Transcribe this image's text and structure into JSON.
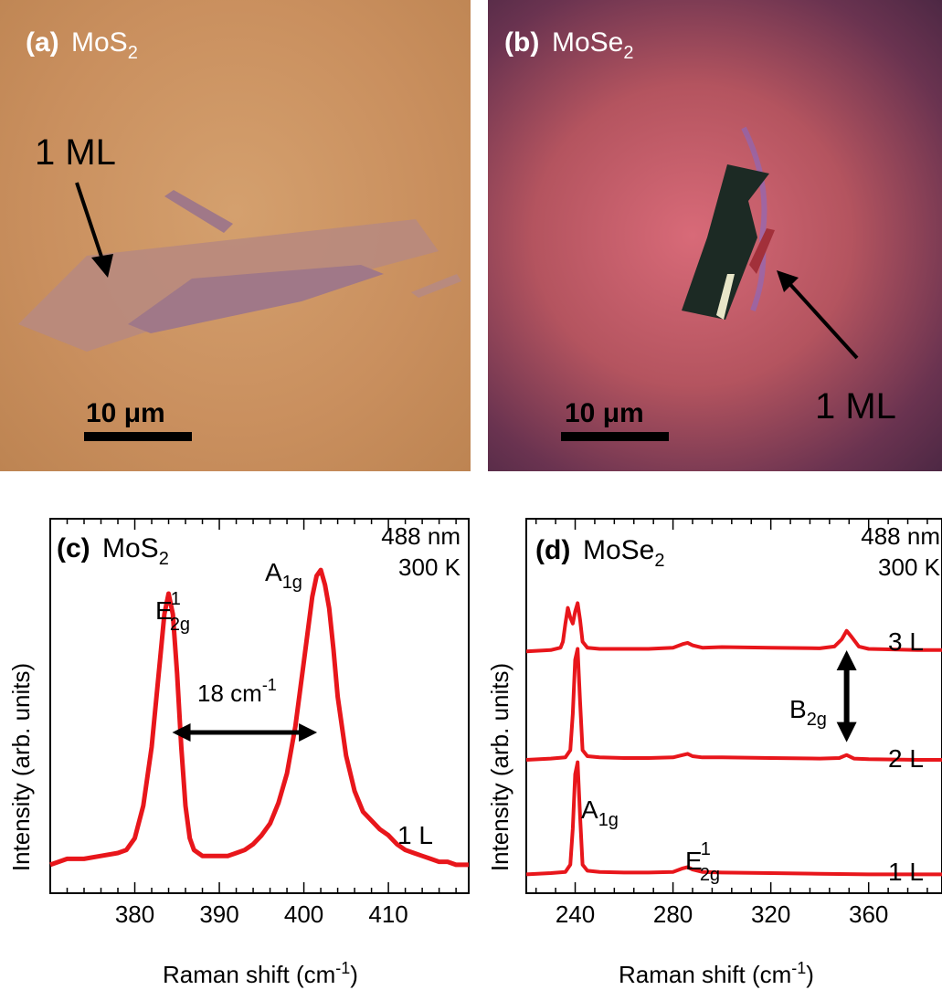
{
  "panel_a": {
    "tag": "(a)",
    "material": "MoS",
    "material_sub": "2",
    "flake_label": "1 ML",
    "scale_bar": "10 μm"
  },
  "panel_b": {
    "tag": "(b)",
    "material": "MoSe",
    "material_sub": "2",
    "flake_label": "1 ML",
    "scale_bar": "10 μm"
  },
  "colors": {
    "trace": "#e8161b",
    "arrow": "#000000"
  },
  "chart_data": [
    {
      "type": "line",
      "panel": "c",
      "tag": "(c)",
      "title": "MoS",
      "title_sub": "2",
      "laser": "488 nm",
      "temperature": "300 K",
      "xlabel": "Raman shift (cm",
      "xlabel_sup": "-1",
      "xlabel_end": ")",
      "ylabel": "Intensity (arb. units)",
      "xlim": [
        370,
        419.5
      ],
      "xticks": [
        380,
        390,
        400,
        410
      ],
      "series": [
        {
          "name": "1 L",
          "x": [
            370,
            372,
            374,
            376,
            378,
            379,
            380,
            381,
            382,
            383,
            383.5,
            384,
            384.5,
            385,
            385.5,
            386,
            386.5,
            387,
            388,
            389,
            390,
            391,
            392,
            393,
            394,
            395,
            396,
            397,
            398,
            399,
            400,
            401,
            401.5,
            402,
            402.5,
            403,
            403.5,
            404,
            405,
            406,
            407,
            408,
            409,
            410,
            411,
            412,
            413,
            414,
            415,
            416,
            417,
            418,
            419.5
          ],
          "y": [
            0.05,
            0.07,
            0.07,
            0.08,
            0.09,
            0.1,
            0.14,
            0.25,
            0.45,
            0.75,
            0.9,
            0.97,
            0.9,
            0.7,
            0.45,
            0.25,
            0.14,
            0.1,
            0.08,
            0.08,
            0.08,
            0.08,
            0.09,
            0.1,
            0.12,
            0.15,
            0.19,
            0.26,
            0.36,
            0.52,
            0.74,
            0.96,
            1.03,
            1.05,
            1.0,
            0.92,
            0.78,
            0.62,
            0.42,
            0.3,
            0.23,
            0.2,
            0.17,
            0.15,
            0.12,
            0.1,
            0.09,
            0.08,
            0.07,
            0.06,
            0.06,
            0.05,
            0.05
          ]
        }
      ],
      "annotations": {
        "peak1": {
          "label": "E",
          "sup": "1",
          "sub": "2g"
        },
        "peak2": {
          "label": "A",
          "sub": "1g"
        },
        "splitting": {
          "value": "18 cm",
          "sup": "-1",
          "from": 384,
          "to": 402
        }
      }
    },
    {
      "type": "line",
      "panel": "d",
      "tag": "(d)",
      "title": "MoSe",
      "title_sub": "2",
      "laser": "488 nm",
      "temperature": "300 K",
      "xlabel": "Raman shift (cm",
      "xlabel_sup": "-1",
      "xlabel_end": ")",
      "ylabel": "Intensity (arb. units)",
      "xlim": [
        220,
        390
      ],
      "xticks": [
        240,
        280,
        320,
        360
      ],
      "series": [
        {
          "name": "1 L",
          "offset": 0,
          "x": [
            220,
            230,
            236,
            238,
            239,
            240,
            241,
            242,
            243,
            245,
            250,
            260,
            270,
            280,
            284,
            286,
            288,
            292,
            300,
            320,
            340,
            360,
            380,
            390
          ],
          "y": [
            0.02,
            0.03,
            0.04,
            0.1,
            0.4,
            0.85,
            0.95,
            0.5,
            0.1,
            0.05,
            0.04,
            0.035,
            0.035,
            0.04,
            0.07,
            0.08,
            0.06,
            0.04,
            0.035,
            0.03,
            0.025,
            0.02,
            0.02,
            0.02
          ]
        },
        {
          "name": "2 L",
          "offset": 0.95,
          "x": [
            220,
            230,
            236,
            238,
            239,
            240,
            241,
            242,
            243,
            245,
            250,
            260,
            270,
            280,
            284,
            286,
            288,
            292,
            300,
            320,
            340,
            348,
            351,
            354,
            360,
            380,
            390
          ],
          "y": [
            0.02,
            0.03,
            0.04,
            0.1,
            0.4,
            0.85,
            0.94,
            0.5,
            0.1,
            0.05,
            0.04,
            0.035,
            0.035,
            0.04,
            0.06,
            0.07,
            0.05,
            0.04,
            0.04,
            0.035,
            0.03,
            0.035,
            0.06,
            0.03,
            0.025,
            0.02,
            0.02
          ]
        },
        {
          "name": "3 L",
          "offset": 1.85,
          "x": [
            220,
            230,
            234,
            235,
            236,
            237,
            238,
            239,
            240,
            241,
            242,
            243,
            245,
            250,
            260,
            270,
            280,
            284,
            286,
            288,
            292,
            300,
            320,
            340,
            346,
            349,
            351,
            353,
            356,
            360,
            380,
            390
          ],
          "y": [
            0.02,
            0.03,
            0.05,
            0.1,
            0.25,
            0.38,
            0.3,
            0.25,
            0.35,
            0.42,
            0.28,
            0.1,
            0.05,
            0.04,
            0.04,
            0.04,
            0.05,
            0.08,
            0.09,
            0.07,
            0.05,
            0.055,
            0.05,
            0.045,
            0.06,
            0.12,
            0.19,
            0.14,
            0.06,
            0.04,
            0.03,
            0.03
          ]
        }
      ],
      "annotations": {
        "peak1": {
          "label": "A",
          "sub": "1g"
        },
        "peak2": {
          "label": "E",
          "sup": "1",
          "sub": "2g"
        },
        "b2g": {
          "label": "B",
          "sub": "2g"
        }
      }
    }
  ]
}
